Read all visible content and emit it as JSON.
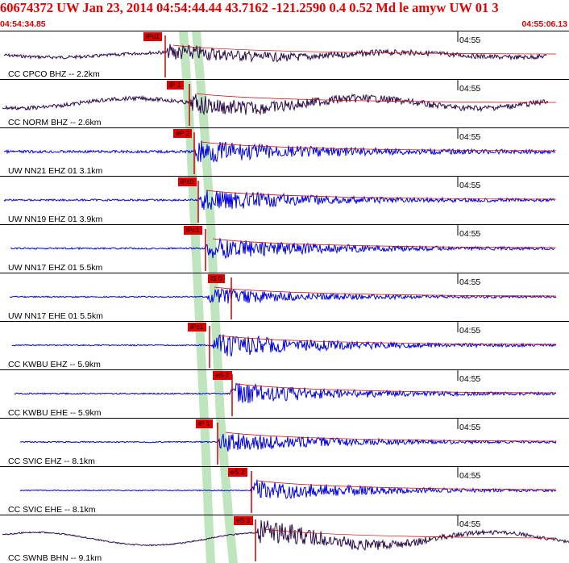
{
  "header": {
    "title": "60674372 UW Jan 23, 2014 04:54:44.44   43.7162 -121.2590   0.4 0.52 Md le amyw UW 01    3",
    "start_time": "04:54:34.85",
    "end_time": "04:55:06.13"
  },
  "colors": {
    "header_text": "#e00000",
    "pick_box": "#e00000",
    "pick_line": "#cc0000",
    "trace_blue": "#0000e0",
    "trace_dark": "#2a0a4a",
    "phase_band": "#bfe5bf"
  },
  "traces": [
    {
      "label": "CC CPCO BHZ -- 2.2km",
      "time": "04:55",
      "pick": "iPd1",
      "color": "#2a0a4a"
    },
    {
      "label": "CC NORM BHZ -- 2.6km",
      "time": "04:55",
      "pick": "iP 1",
      "color": "#2a0a4a"
    },
    {
      "label": "UW NN21 EHZ 01 3.1km",
      "time": "04:55",
      "pick": "eP 2",
      "color": "#0000e0"
    },
    {
      "label": "UW NN19 EHZ 01 3.9km",
      "time": "04:55",
      "pick": "iPc0",
      "color": "#0000e0"
    },
    {
      "label": "UW NN17 EHZ 01 5.5km",
      "time": "04:55",
      "pick": "iPc1",
      "color": "#0000e0"
    },
    {
      "label": "UW NN17 EHE 01 5.5km",
      "time": "04:55",
      "pick": "iS 0",
      "color": "#0000e0"
    },
    {
      "label": "CC KWBU EHZ -- 5.9km",
      "time": "04:55",
      "pick": "iPc1",
      "color": "#0000e0"
    },
    {
      "label": "CC KWBU EHE -- 5.9km",
      "time": "04:55",
      "pick": "eS 2",
      "color": "#0000e0"
    },
    {
      "label": "CC SVIC EHZ -- 8.1km",
      "time": "04:55",
      "pick": "iP 1",
      "color": "#0000e0"
    },
    {
      "label": "CC SVIC EHE -- 8.1km",
      "time": "04:55",
      "pick": "eS 2",
      "color": "#0000e0"
    },
    {
      "label": "CC SWNB BHN -- 9.1km",
      "time": "04:55",
      "pick": "eS 2",
      "color": "#2a0a4a"
    }
  ]
}
